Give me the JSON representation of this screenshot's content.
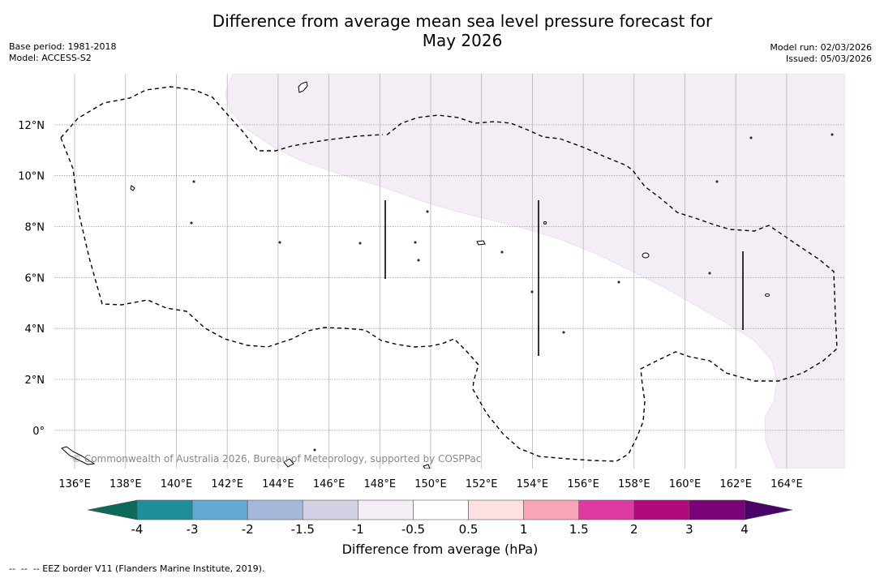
{
  "title": {
    "line1": "Difference from average mean sea level pressure forecast for",
    "line2": "May 2026"
  },
  "meta_left": {
    "base_period": "Base period: 1981-2018",
    "model": "Model: ACCESS-S2"
  },
  "meta_right": {
    "model_run": "Model run: 02/03/2026",
    "issued": "Issued: 05/03/2026"
  },
  "map": {
    "lon_range": [
      135.2,
      166.3
    ],
    "lat_range": [
      -1.5,
      14.0
    ],
    "lon_ticks": [
      "136°E",
      "138°E",
      "140°E",
      "142°E",
      "144°E",
      "146°E",
      "148°E",
      "150°E",
      "152°E",
      "154°E",
      "156°E",
      "158°E",
      "160°E",
      "162°E",
      "164°E"
    ],
    "lat_ticks": [
      "12°N",
      "10°N",
      "8°N",
      "6°N",
      "4°N",
      "2°N",
      "0°"
    ],
    "shaded_category": "-1 to -0.5 hPa",
    "shaded_color": "#f4edf6",
    "copyright": "© Commonwealth of Australia 2026, Bureau of Meteorology, supported by COSPPac"
  },
  "colorbar": {
    "label": "Difference from average (hPa)",
    "ticks": [
      "-4",
      "-3",
      "-2",
      "-1.5",
      "-1",
      "-0.5",
      "0.5",
      "1",
      "1.5",
      "2",
      "3",
      "4"
    ],
    "colors": [
      "#1f8f99",
      "#65a9d3",
      "#a7b8db",
      "#d2d1e6",
      "#f4edf6",
      "#ffffff",
      "#fde0e0",
      "#f8a5b7",
      "#de3a9f",
      "#ae0a7a",
      "#7a0278"
    ],
    "low_extend_color": "#0b6a5a",
    "high_extend_color": "#4b0266"
  },
  "footnote": "--  --  -- EEZ border V11 (Flanders Marine Institute, 2019)."
}
